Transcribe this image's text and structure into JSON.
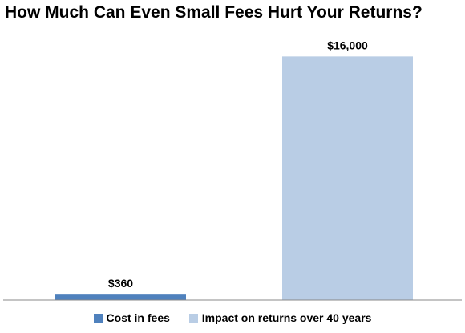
{
  "chart_data": {
    "type": "bar",
    "title": "How Much Can Even Small Fees Hurt Your Returns?",
    "categories": [
      "Cost in fees",
      "Impact on returns over 40 years"
    ],
    "values": [
      360,
      16000
    ],
    "data_labels": [
      "$360",
      "$16,000"
    ],
    "colors": [
      "#4f81bd",
      "#b9cde5"
    ],
    "ylim": [
      0,
      17600
    ],
    "grid": false,
    "legend": "bottom",
    "xlabel": "",
    "ylabel": ""
  }
}
